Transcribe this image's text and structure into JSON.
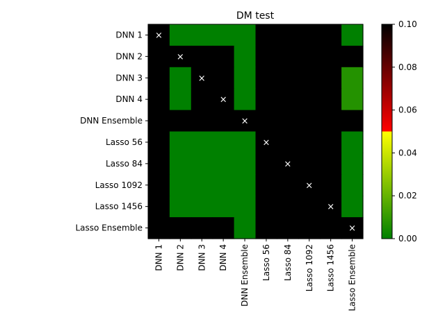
{
  "chart_data": {
    "type": "heatmap",
    "title": "DM test",
    "xlabel": "",
    "ylabel": "",
    "rows": [
      "DNN 1",
      "DNN 2",
      "DNN 3",
      "DNN 4",
      "DNN Ensemble",
      "Lasso 56",
      "Lasso 84",
      "Lasso 1092",
      "Lasso 1456",
      "Lasso Ensemble"
    ],
    "columns": [
      "DNN 1",
      "DNN 2",
      "DNN 3",
      "DNN 4",
      "DNN Ensemble",
      "Lasso 56",
      "Lasso 84",
      "Lasso 1092",
      "Lasso 1456",
      "Lasso Ensemble"
    ],
    "values": [
      [
        null,
        0.0,
        0.0,
        0.0,
        0.0,
        null,
        null,
        null,
        null,
        0.0
      ],
      [
        null,
        null,
        null,
        null,
        0.0,
        null,
        null,
        null,
        null,
        null
      ],
      [
        null,
        0.0,
        null,
        null,
        0.0,
        null,
        null,
        null,
        null,
        0.007
      ],
      [
        null,
        0.0,
        null,
        null,
        0.0,
        null,
        null,
        null,
        null,
        0.007
      ],
      [
        null,
        null,
        null,
        null,
        null,
        null,
        null,
        null,
        null,
        null
      ],
      [
        null,
        0.0,
        0.0,
        0.0,
        0.0,
        null,
        null,
        null,
        null,
        0.0
      ],
      [
        null,
        0.0,
        0.0,
        0.0,
        0.0,
        null,
        null,
        null,
        null,
        0.0
      ],
      [
        null,
        0.0,
        0.0,
        0.0,
        0.0,
        null,
        null,
        null,
        null,
        0.0
      ],
      [
        null,
        0.0,
        0.0,
        0.0,
        0.0,
        null,
        null,
        null,
        null,
        0.0
      ],
      [
        null,
        null,
        null,
        null,
        0.0,
        null,
        null,
        null,
        null,
        null
      ]
    ],
    "diagonal_marker": "×",
    "missing_color": "#000000",
    "colorbar": {
      "range": [
        0,
        0.1
      ],
      "ticks": [
        "0.00",
        "0.02",
        "0.04",
        "0.06",
        "0.08",
        "0.10"
      ],
      "segments": [
        {
          "from": 0.0,
          "to": 0.05,
          "color_start": "#008000",
          "color_end": "#ffff00"
        },
        {
          "from": 0.05,
          "to": 0.1,
          "color_start": "#ff0000",
          "color_end": "#000000"
        }
      ]
    }
  }
}
